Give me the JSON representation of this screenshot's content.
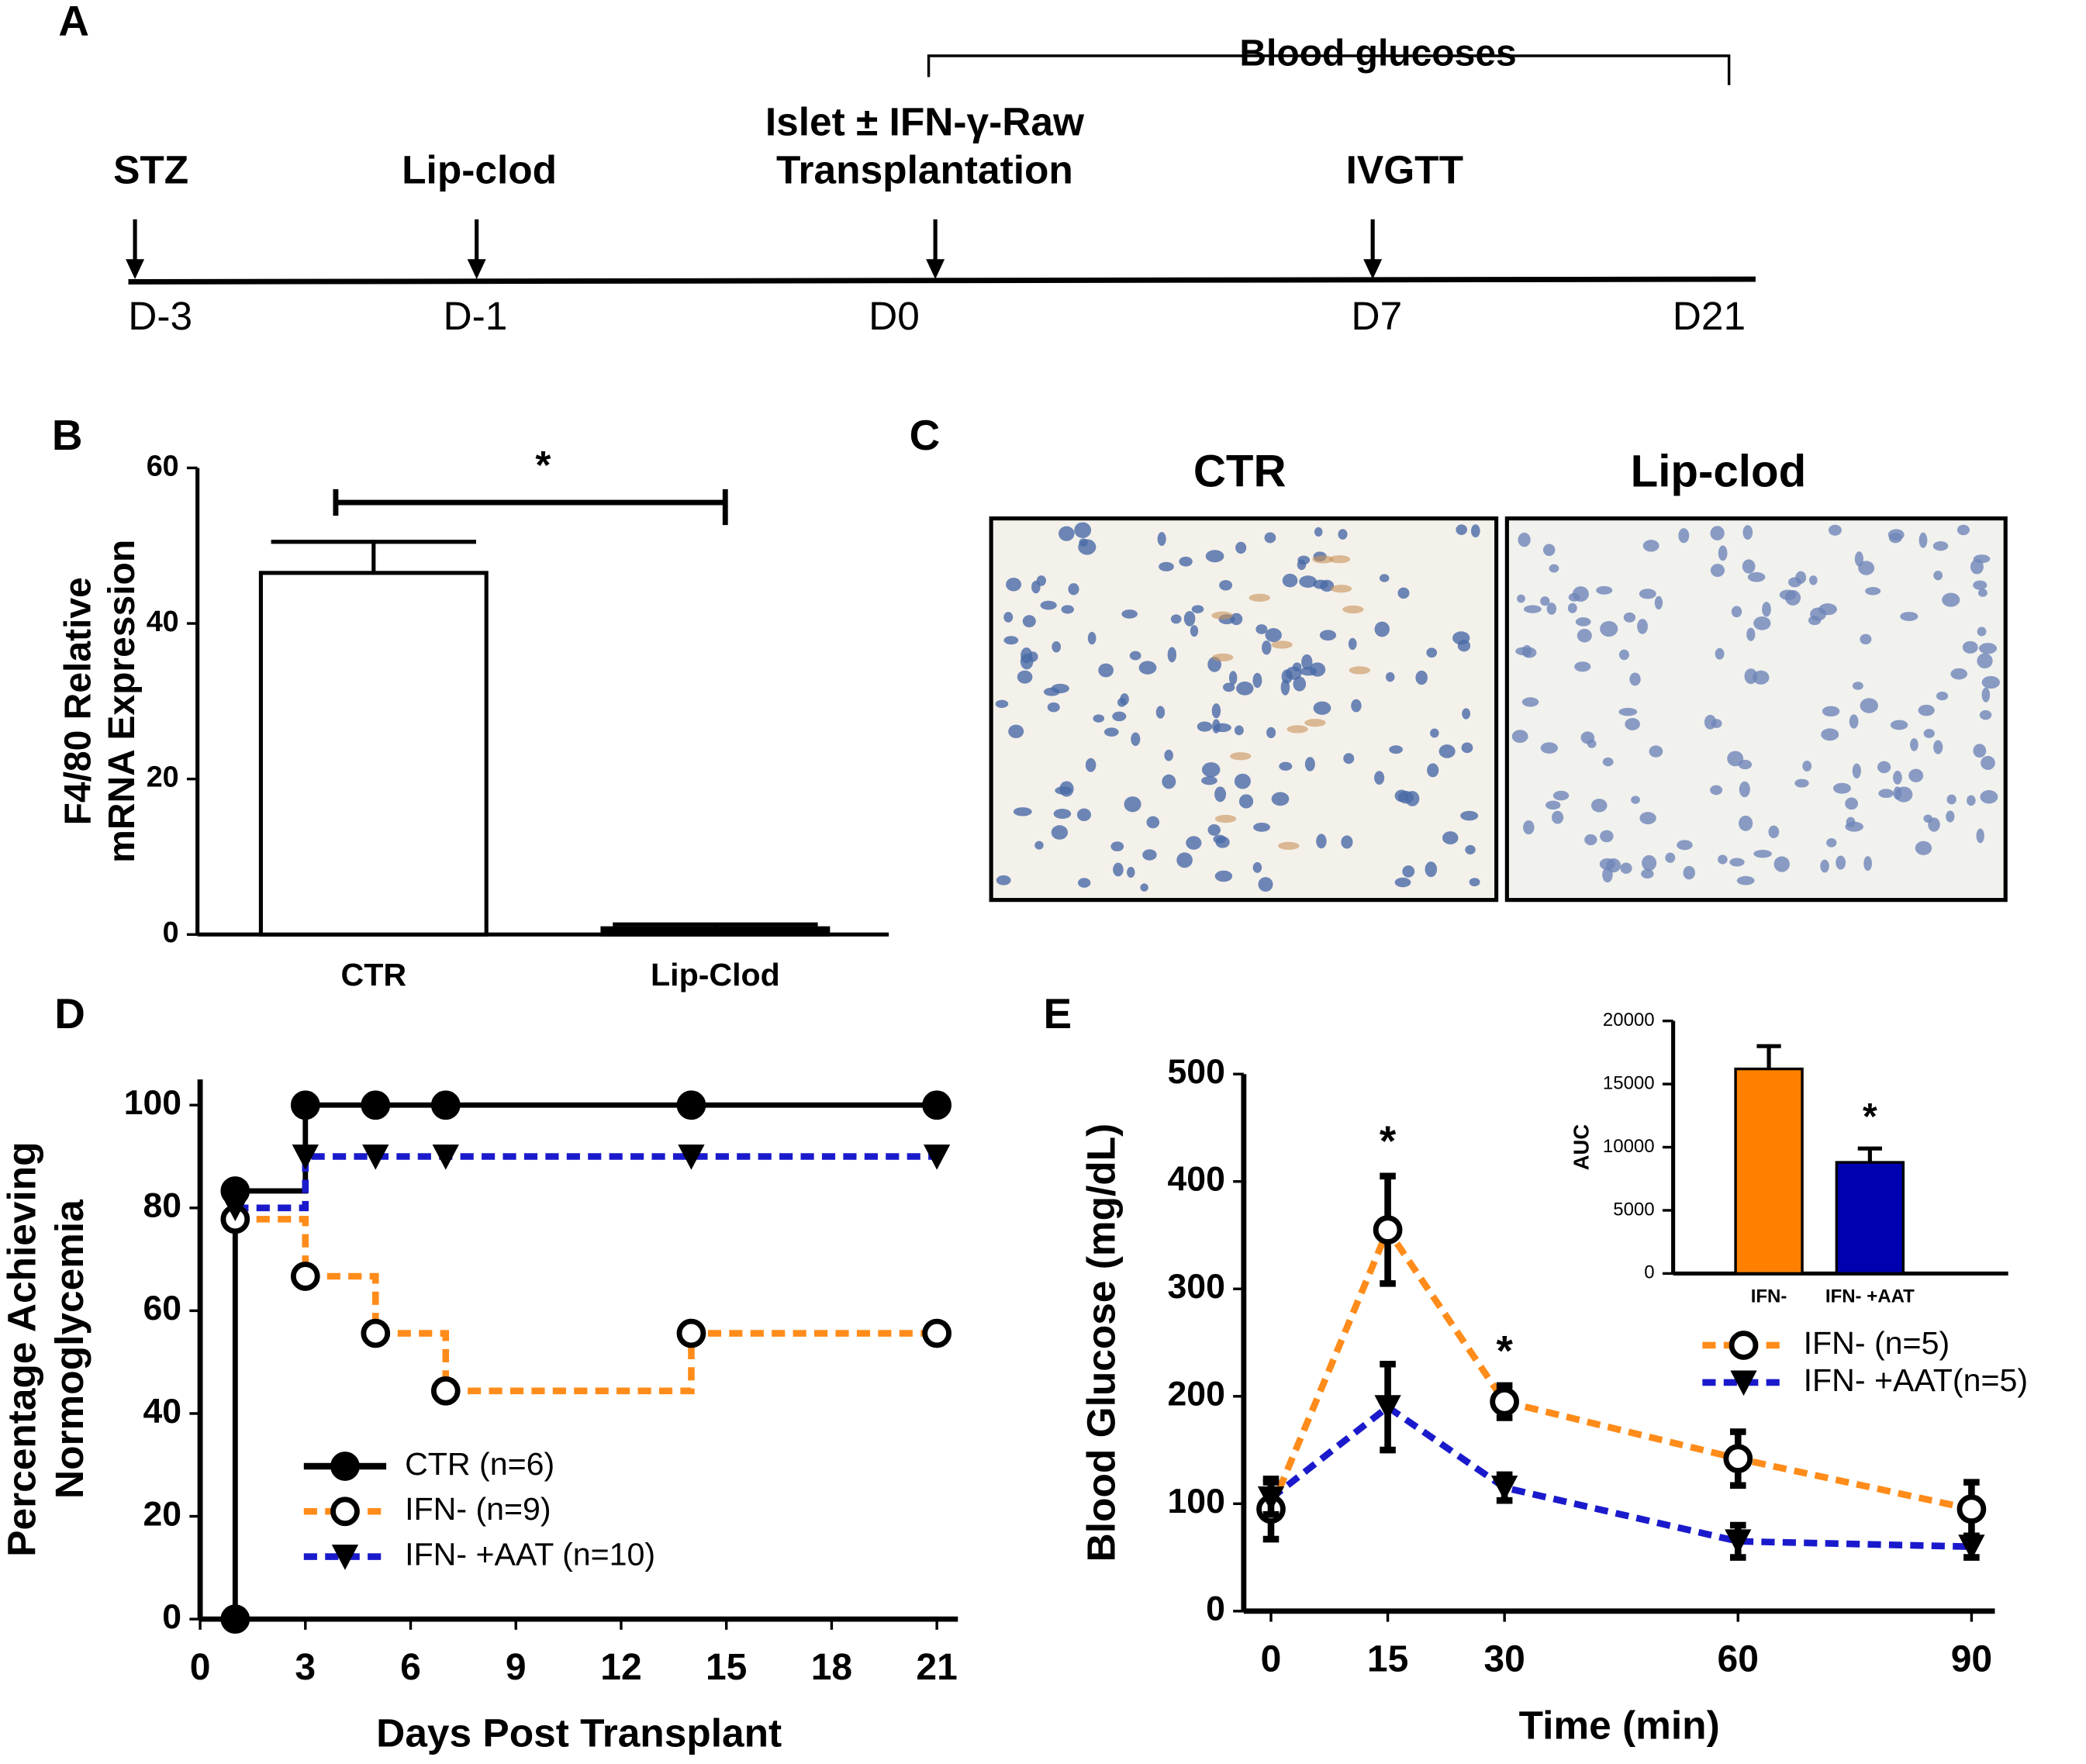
{
  "panel_labels": [
    "A",
    "B",
    "C",
    "D",
    "E"
  ],
  "timeline": {
    "bracket_label": "Blood glucoses",
    "events": [
      {
        "label": [
          "STZ"
        ],
        "day": "D-3",
        "arrow": true
      },
      {
        "label": [
          "Lip-clod"
        ],
        "day": "D-1",
        "arrow": true
      },
      {
        "label": [
          "Islet ± IFN-γ-Raw",
          "Transplantation"
        ],
        "day": "D0",
        "arrow": true
      },
      {
        "label": [
          "IVGTT"
        ],
        "day": "D7",
        "arrow": true
      },
      {
        "label": [],
        "day": "D21",
        "arrow": false
      }
    ]
  },
  "micrographs": {
    "titles": [
      "CTR",
      "Lip-clod"
    ]
  },
  "chart_data": [
    {
      "type": "bar",
      "categories": [
        "CTR",
        "Lip-Clod"
      ],
      "values": [
        46.5,
        0.8
      ],
      "errors": [
        4,
        0.5
      ],
      "colors": [
        "#ffffff",
        "#000000"
      ],
      "ylim": [
        0,
        60
      ],
      "yticks": [
        0,
        20,
        40,
        60
      ],
      "ylabel": [
        "F4/80 Relative",
        "mRNA Expression"
      ],
      "annotations": [
        "*"
      ]
    },
    {
      "type": "line",
      "step": true,
      "xlim": [
        0,
        21.6
      ],
      "xticks": [
        0,
        3,
        6,
        9,
        12,
        15,
        18,
        21
      ],
      "ylim": [
        0,
        105
      ],
      "yticks": [
        0,
        20,
        40,
        60,
        80,
        100
      ],
      "xlabel": "Days Post Transplant",
      "ylabel": [
        "Percentage Achieving",
        "Normoglycemia"
      ],
      "legend": "lower left",
      "series": [
        {
          "name": "CTR (n=6)",
          "color": "#000000",
          "dashed": false,
          "marker": "circle",
          "x": [
            1,
            1,
            3,
            5,
            7,
            14,
            21
          ],
          "values": [
            0,
            83.3,
            100,
            100,
            100,
            100,
            100
          ]
        },
        {
          "name": "IFN-  (n=9)",
          "color": "#ff8c1a",
          "dashed": true,
          "marker": "open-circle",
          "x": [
            1,
            3,
            5,
            7,
            14,
            21
          ],
          "values": [
            77.8,
            66.7,
            55.6,
            44.4,
            55.6,
            55.6
          ]
        },
        {
          "name": "IFN-  +AAT (n=10)",
          "color": "#1a1acc",
          "dashed": true,
          "marker": "triangle",
          "x": [
            1,
            3,
            5,
            7,
            14,
            21
          ],
          "values": [
            80,
            90,
            90,
            90,
            90,
            90
          ]
        }
      ]
    },
    {
      "type": "line",
      "step": false,
      "xlim": [
        -3.5,
        93
      ],
      "xticks": [
        0,
        15,
        30,
        60,
        90
      ],
      "ylim": [
        0,
        500
      ],
      "yticks": [
        0,
        100,
        200,
        300,
        400,
        500
      ],
      "xlabel": "Time (min)",
      "ylabel": [
        "Blood Glucose (mg/dL)"
      ],
      "legend": "upper right",
      "annotations": [
        "*",
        "*"
      ],
      "series": [
        {
          "name": "IFN-   (n=5)",
          "color": "#ff8c1a",
          "dashed": true,
          "marker": "open-circle",
          "x": [
            0,
            15,
            30,
            60,
            90
          ],
          "values": [
            95,
            355,
            195,
            142,
            95
          ],
          "errors": [
            28,
            50,
            15,
            25,
            25
          ]
        },
        {
          "name": "IFN-  +AAT(n=5)",
          "color": "#1a1acc",
          "dashed": true,
          "marker": "triangle",
          "x": [
            0,
            15,
            30,
            60,
            90
          ],
          "values": [
            105,
            190,
            115,
            65,
            60
          ],
          "errors": [
            15,
            40,
            12,
            15,
            10
          ]
        }
      ]
    },
    {
      "type": "bar",
      "categories": [
        "IFN-",
        "IFN-  +AAT"
      ],
      "values": [
        16200,
        8800
      ],
      "errors": [
        1800,
        1100
      ],
      "colors": [
        "#ff8000",
        "#0000b0"
      ],
      "ylim": [
        0,
        20000
      ],
      "yticks": [
        0,
        5000,
        10000,
        15000,
        20000
      ],
      "ylabel": [
        "AUC"
      ],
      "annotations": [
        "*"
      ]
    }
  ]
}
